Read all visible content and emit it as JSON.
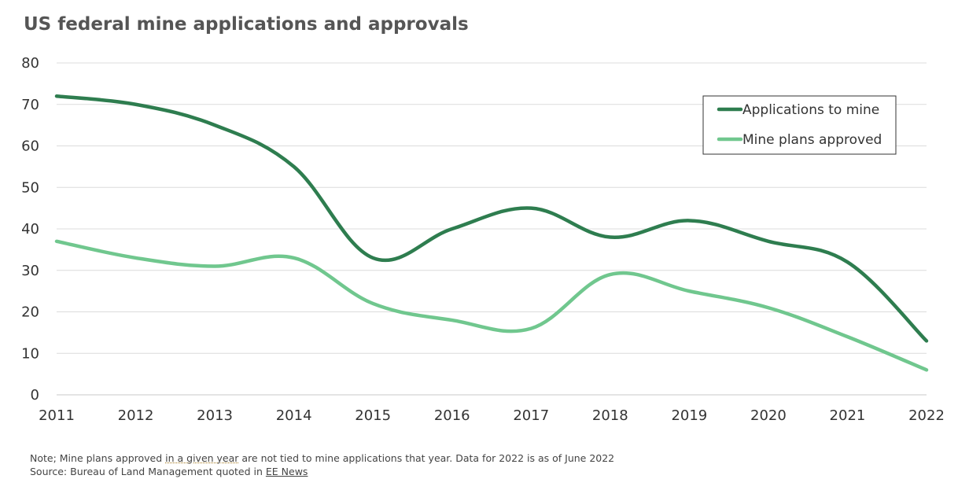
{
  "title": "US federal mine applications and approvals",
  "chart_data": {
    "type": "line",
    "title": "US federal mine applications and approvals",
    "x": [
      "2011",
      "2012",
      "2013",
      "2014",
      "2015",
      "2016",
      "2017",
      "2018",
      "2019",
      "2020",
      "2021",
      "2022"
    ],
    "series": [
      {
        "name": "Applications to mine",
        "color": "#2e7d4f",
        "values": [
          72,
          70,
          65,
          55,
          33,
          40,
          45,
          38,
          42,
          37,
          32,
          13
        ]
      },
      {
        "name": "Mine plans approved",
        "color": "#70c78e",
        "values": [
          37,
          33,
          31,
          33,
          22,
          18,
          16,
          29,
          25,
          21,
          14,
          6
        ]
      }
    ],
    "ylim": [
      0,
      80
    ],
    "yticks": [
      "0",
      "10",
      "20",
      "30",
      "40",
      "50",
      "60",
      "70",
      "80"
    ],
    "grid": true,
    "legend_position": "top-right",
    "xlabel": "",
    "ylabel": ""
  },
  "notes": {
    "note_prefix": "Note; Mine plans approved ",
    "note_dotted": "in a given year",
    "note_suffix": " are not tied to mine applications that year. Data for 2022 is as of June 2022",
    "source_prefix": "Source: Bureau of Land Management quoted in ",
    "source_link": "EE News"
  }
}
